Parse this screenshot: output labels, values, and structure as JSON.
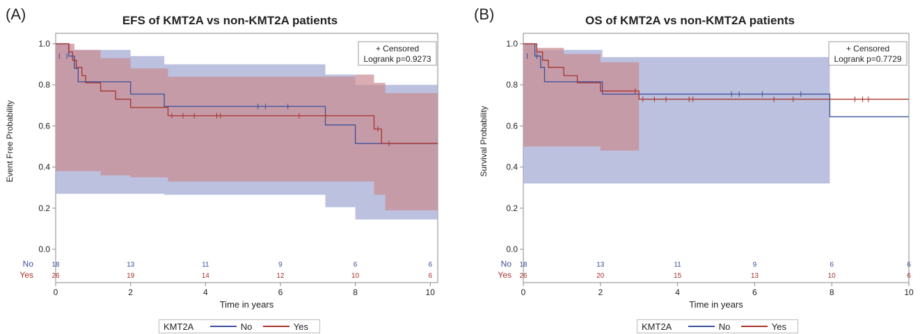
{
  "panels": [
    {
      "letter": "(A)",
      "title": "EFS of KMT2A vs non-KMT2A patients",
      "ylabel": "Event Free Probability",
      "xlabel": "Time in years",
      "box_line1": "+ Censored",
      "box_line2": "Logrank p=0.9273"
    },
    {
      "letter": "(B)",
      "title": "OS of KMT2A vs non-KMT2A patients",
      "ylabel": "Survival Probability",
      "xlabel": "Time in years",
      "box_line1": "+ Censored",
      "box_line2": "Logrank p=0.7729"
    }
  ],
  "legend": {
    "title": "KMT2A",
    "no_label": "No",
    "yes_label": "Yes"
  },
  "colors": {
    "no": "#3a4f9a",
    "yes": "#a8322a",
    "no_band": "#aab2d6",
    "yes_band": "#c98a92"
  },
  "chart_data": [
    {
      "type": "line",
      "title": "EFS of KMT2A vs non-KMT2A patients",
      "xlabel": "Time in years",
      "ylabel": "Event Free Probability",
      "xlim": [
        0,
        10.2
      ],
      "ylim": [
        0,
        1.0
      ],
      "xticks": [
        0,
        2,
        4,
        6,
        8,
        10
      ],
      "yticks": [
        0.0,
        0.2,
        0.4,
        0.6,
        0.8,
        1.0
      ],
      "series": [
        {
          "name": "No",
          "color": "#3a4f9a",
          "x": [
            0.0,
            0.35,
            0.35,
            0.5,
            0.5,
            0.6,
            0.6,
            2.0,
            2.0,
            2.9,
            2.9,
            7.2,
            7.2,
            8.0,
            8.0,
            10.2
          ],
          "y": [
            1.0,
            1.0,
            0.94,
            0.94,
            0.88,
            0.88,
            0.815,
            0.815,
            0.755,
            0.755,
            0.695,
            0.695,
            0.605,
            0.605,
            0.515,
            0.515
          ],
          "censored_x": [
            0.1,
            0.3,
            5.4,
            5.6,
            6.2
          ],
          "censored_y": [
            0.94,
            0.94,
            0.695,
            0.695,
            0.695
          ],
          "ci_upper_x": [
            0.0,
            0.4,
            2.0,
            2.9,
            7.2,
            8.0,
            10.2
          ],
          "ci_upper_y": [
            1.0,
            0.97,
            0.94,
            0.9,
            0.85,
            0.8,
            0.8
          ],
          "ci_lower_x": [
            0.0,
            0.4,
            2.0,
            2.9,
            7.2,
            8.0,
            10.2
          ],
          "ci_lower_y": [
            0.27,
            0.27,
            0.27,
            0.265,
            0.205,
            0.145,
            0.145
          ]
        },
        {
          "name": "Yes",
          "color": "#a8322a",
          "x": [
            0.0,
            0.35,
            0.35,
            0.45,
            0.45,
            0.55,
            0.55,
            0.7,
            0.7,
            0.8,
            0.8,
            1.2,
            1.2,
            1.6,
            1.6,
            2.0,
            2.0,
            3.0,
            3.0,
            8.5,
            8.5,
            8.7,
            8.7,
            10.2
          ],
          "y": [
            1.0,
            1.0,
            0.96,
            0.96,
            0.92,
            0.92,
            0.885,
            0.885,
            0.845,
            0.845,
            0.81,
            0.81,
            0.77,
            0.77,
            0.73,
            0.73,
            0.69,
            0.69,
            0.65,
            0.65,
            0.585,
            0.585,
            0.515,
            0.515
          ],
          "censored_x": [
            3.1,
            3.4,
            3.7,
            4.3,
            4.4,
            6.5,
            7.2,
            8.6,
            8.9
          ],
          "censored_y": [
            0.65,
            0.65,
            0.65,
            0.65,
            0.65,
            0.65,
            0.65,
            0.585,
            0.515
          ],
          "ci_upper_x": [
            0.0,
            0.5,
            1.2,
            2.0,
            3.0,
            7.2,
            8.0,
            8.5,
            8.8,
            10.2
          ],
          "ci_upper_y": [
            1.0,
            0.97,
            0.93,
            0.88,
            0.84,
            0.84,
            0.85,
            0.81,
            0.76,
            0.76
          ],
          "ci_lower_x": [
            0.0,
            0.35,
            1.2,
            2.0,
            3.0,
            7.2,
            8.0,
            8.5,
            8.8,
            10.2
          ],
          "ci_lower_y": [
            0.38,
            0.38,
            0.36,
            0.35,
            0.33,
            0.33,
            0.33,
            0.265,
            0.19,
            0.19
          ]
        }
      ],
      "at_risk": {
        "times": [
          0,
          2,
          4,
          6,
          8,
          10
        ],
        "rows": [
          {
            "label": "No",
            "values": [
              "18",
              "13",
              "11",
              "9",
              "6",
              "6"
            ]
          },
          {
            "label": "Yes",
            "values": [
              "26",
              "19",
              "14",
              "12",
              "10",
              "6"
            ]
          }
        ]
      }
    },
    {
      "type": "line",
      "title": "OS of KMT2A vs non-KMT2A patients",
      "xlabel": "Time in years",
      "ylabel": "Survival Probability",
      "xlim": [
        0,
        10.0
      ],
      "ylim": [
        0,
        1.0
      ],
      "xticks": [
        0,
        2,
        4,
        6,
        8,
        10
      ],
      "yticks": [
        0.0,
        0.2,
        0.4,
        0.6,
        0.8,
        1.0
      ],
      "series": [
        {
          "name": "No",
          "color": "#3a4f9a",
          "x": [
            0.0,
            0.3,
            0.3,
            0.45,
            0.45,
            0.55,
            0.55,
            2.05,
            2.05,
            7.95,
            7.95,
            10.0
          ],
          "y": [
            1.0,
            1.0,
            0.94,
            0.94,
            0.885,
            0.885,
            0.815,
            0.815,
            0.755,
            0.755,
            0.645,
            0.645
          ],
          "censored_x": [
            0.1,
            0.35,
            5.4,
            5.6,
            6.2,
            7.2
          ],
          "censored_y": [
            0.94,
            0.94,
            0.755,
            0.755,
            0.755,
            0.755
          ],
          "ci_upper_x": [
            0.0,
            0.3,
            2.05,
            7.95,
            10.0
          ],
          "ci_upper_y": [
            1.0,
            0.97,
            0.935,
            0.0,
            0.0
          ],
          "ci_lower_x": [
            0.0,
            0.3,
            2.05,
            7.95,
            10.0
          ],
          "ci_lower_y": [
            0.32,
            0.32,
            0.32,
            0.0,
            0.0
          ]
        },
        {
          "name": "Yes",
          "color": "#a8322a",
          "x": [
            0.0,
            0.35,
            0.35,
            0.5,
            0.5,
            0.65,
            0.65,
            1.05,
            1.05,
            1.4,
            1.4,
            2.0,
            2.0,
            3.0,
            3.0,
            10.0
          ],
          "y": [
            1.0,
            1.0,
            0.96,
            0.96,
            0.92,
            0.92,
            0.885,
            0.885,
            0.845,
            0.845,
            0.81,
            0.81,
            0.77,
            0.77,
            0.73,
            0.73
          ],
          "censored_x": [
            2.9,
            3.1,
            3.4,
            3.7,
            4.3,
            4.4,
            6.5,
            7.0,
            8.6,
            8.8,
            8.95
          ],
          "censored_y": [
            0.77,
            0.73,
            0.73,
            0.73,
            0.73,
            0.73,
            0.73,
            0.73,
            0.73,
            0.73,
            0.73
          ],
          "ci_upper_x": [
            0.0,
            0.35,
            1.05,
            2.0,
            3.0
          ],
          "ci_upper_y": [
            1.0,
            0.98,
            0.95,
            0.91,
            0.91
          ],
          "ci_lower_x": [
            0.0,
            0.35,
            1.05,
            2.0,
            3.0
          ],
          "ci_lower_y": [
            0.5,
            0.5,
            0.5,
            0.48,
            0.48
          ]
        }
      ],
      "at_risk": {
        "times": [
          0,
          2,
          4,
          6,
          8,
          10
        ],
        "rows": [
          {
            "label": "No",
            "values": [
              "18",
              "13",
              "11",
              "9",
              "6",
              "6"
            ]
          },
          {
            "label": "Yes",
            "values": [
              "26",
              "20",
              "15",
              "13",
              "10",
              "6"
            ]
          }
        ]
      }
    }
  ]
}
